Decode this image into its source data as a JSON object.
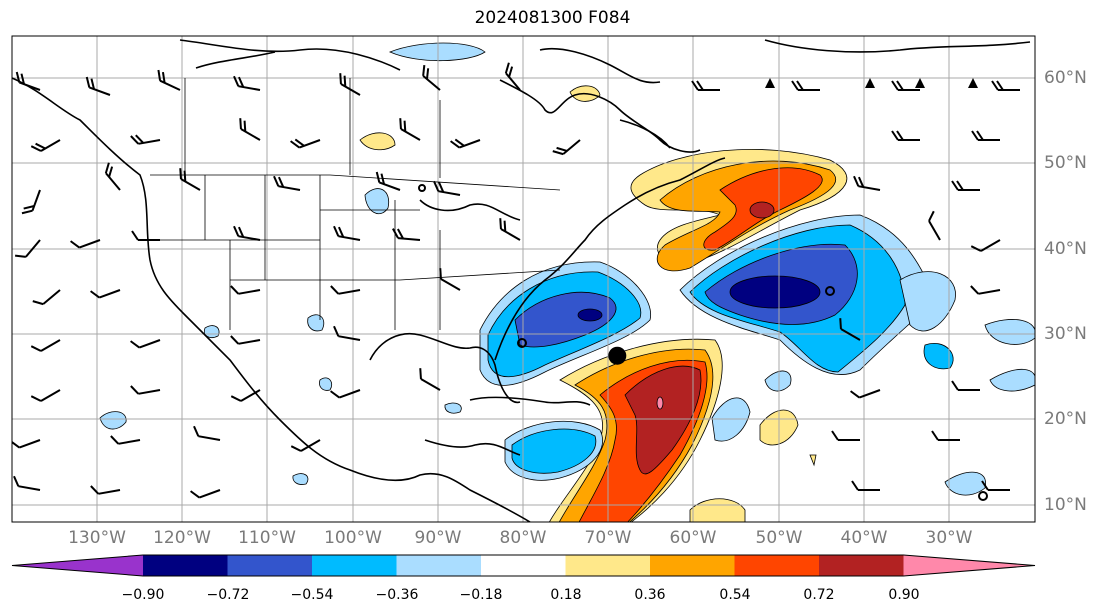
{
  "title": "2024081300 F084",
  "lat_labels": [
    "60°N",
    "50°N",
    "40°N",
    "30°N",
    "20°N",
    "10°N"
  ],
  "lon_labels": [
    "130°W",
    "120°W",
    "110°W",
    "100°W",
    "90°W",
    "80°W",
    "70°W",
    "60°W",
    "50°W",
    "40°W",
    "30°W"
  ],
  "colorbar": {
    "ticks": [
      "−0.90",
      "−0.72",
      "−0.54",
      "−0.36",
      "−0.18",
      "0.18",
      "0.36",
      "0.54",
      "0.72",
      "0.90"
    ],
    "colors": [
      "#9933cc",
      "#000080",
      "#3355cc",
      "#00bbff",
      "#aaddff",
      "#ffffff",
      "#ffe88a",
      "#ffa500",
      "#ff4500",
      "#b22222",
      "#ff88aa"
    ]
  },
  "map": {
    "lon_range": [
      -140,
      -20
    ],
    "lat_range": [
      8,
      65
    ],
    "grid": true,
    "marker": {
      "lon": -69,
      "lat": 27.5
    }
  }
}
